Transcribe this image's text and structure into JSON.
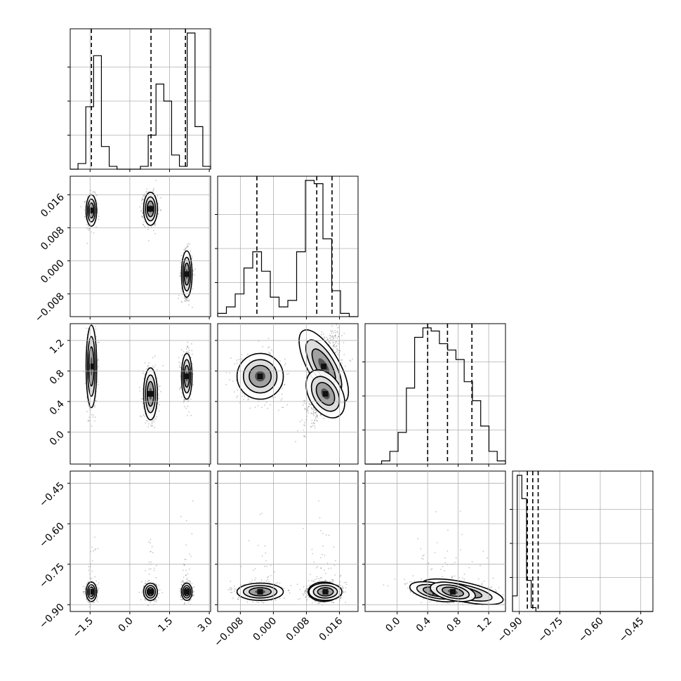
{
  "chart_data": {
    "type": "corner",
    "grid": true,
    "parameters": [
      {
        "range": [
          -2.25,
          3.05
        ],
        "ticks": [
          -1.5,
          0.0,
          1.5,
          3.0
        ],
        "tick_labels": [
          "−1.5",
          "0.0",
          "1.5",
          "3.0"
        ]
      },
      {
        "range": [
          -0.0135,
          0.0205
        ],
        "ticks": [
          -0.008,
          0.0,
          0.008,
          0.016
        ],
        "tick_labels": [
          "−0.008",
          "0.000",
          "0.008",
          "0.016"
        ]
      },
      {
        "range": [
          -0.42,
          1.42
        ],
        "ticks": [
          0.0,
          0.4,
          0.8,
          1.2
        ],
        "tick_labels": [
          "0.0",
          "0.4",
          "0.8",
          "1.2"
        ]
      },
      {
        "range": [
          -0.925,
          -0.405
        ],
        "ticks": [
          -0.9,
          -0.75,
          -0.6,
          -0.45
        ],
        "tick_labels": [
          "−0.90",
          "−0.75",
          "−0.60",
          "−0.45"
        ]
      }
    ],
    "histograms": [
      {
        "counts": [
          0,
          2,
          22,
          40,
          8,
          1,
          0,
          0,
          0,
          1,
          12,
          30,
          24,
          5,
          1,
          48,
          15,
          1
        ],
        "quantiles": [
          -1.45,
          0.8,
          2.1
        ]
      },
      {
        "counts": [
          1,
          3,
          7,
          15,
          20,
          14,
          6,
          3,
          5,
          20,
          42,
          41,
          24,
          8,
          1,
          0
        ],
        "quantiles": [
          -0.004,
          0.0105,
          0.0142
        ]
      },
      {
        "counts": [
          0,
          0,
          1,
          4,
          10,
          24,
          40,
          43,
          42,
          38,
          36,
          33,
          26,
          20,
          12,
          4,
          1
        ],
        "quantiles": [
          0.4,
          0.66,
          0.98
        ]
      },
      {
        "counts": [
          4,
          35,
          29,
          8,
          1,
          0,
          0,
          0,
          0,
          0,
          0,
          0,
          0,
          0,
          0,
          0,
          0,
          0,
          0,
          0,
          0,
          0,
          0,
          0,
          0,
          0,
          0,
          0,
          0,
          0
        ],
        "quantiles": [
          -0.87,
          -0.85,
          -0.83
        ]
      }
    ],
    "modes": [
      {
        "p0": -1.45,
        "p1": 0.0122,
        "p2": 0.86,
        "p3": -0.852,
        "weight": 0.33
      },
      {
        "p0": 0.78,
        "p1": 0.0126,
        "p2": 0.5,
        "p3": -0.852,
        "weight": 0.33
      },
      {
        "p0": 2.15,
        "p1": -0.0032,
        "p2": 0.73,
        "p3": -0.852,
        "weight": 0.34
      }
    ]
  }
}
